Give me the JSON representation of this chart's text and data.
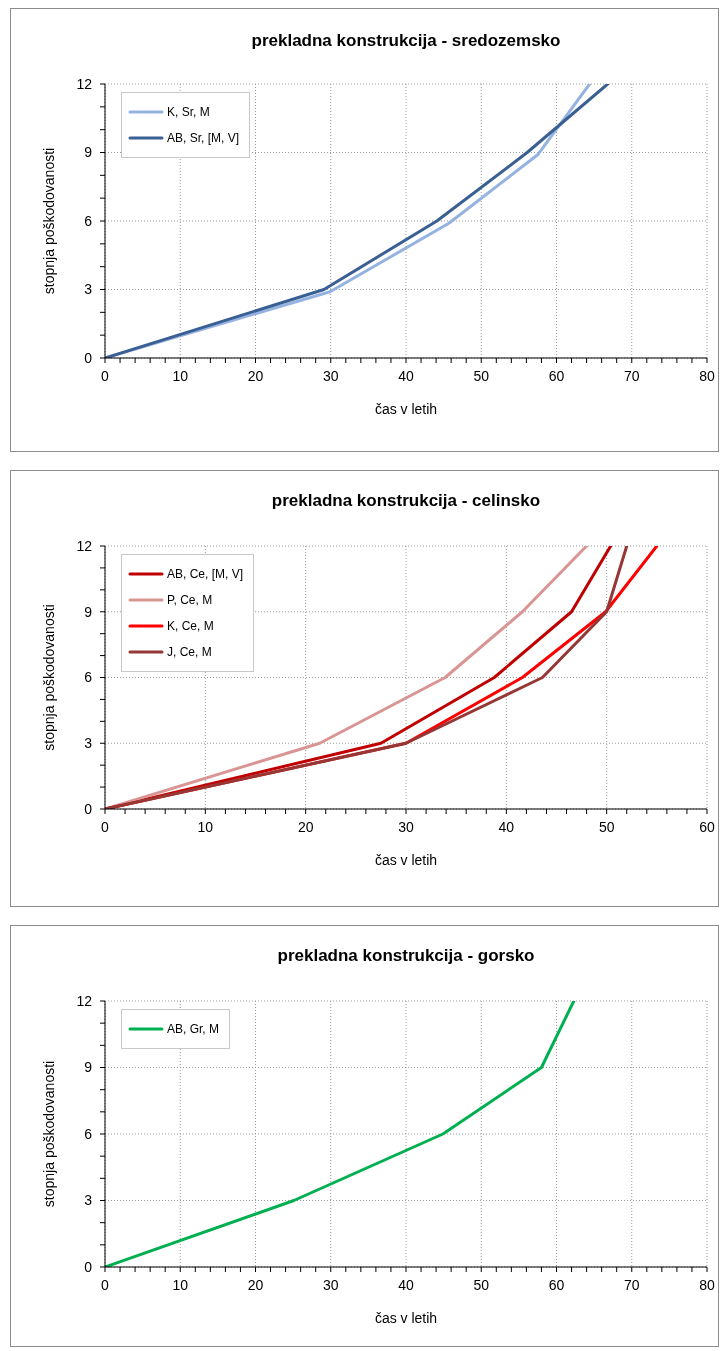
{
  "chart_data": [
    {
      "type": "line",
      "title": "prekladna konstrukcija - sredozemsko",
      "xlabel": "čas v letih",
      "ylabel": "stopnja poškodovanosti",
      "xlim": [
        0,
        80
      ],
      "ylim": [
        0,
        12
      ],
      "xticks": [
        0,
        {
          "value": 2,
          "label": null
        },
        {
          "value": 4,
          "label": null
        },
        {
          "value": 6,
          "label": null
        },
        {
          "value": 8,
          "label": null
        },
        10,
        {
          "value": 12,
          "label": null
        },
        {
          "value": 14,
          "label": null
        },
        {
          "value": 16,
          "label": null
        },
        {
          "value": 18,
          "label": null
        },
        20,
        {
          "value": 22,
          "label": null
        },
        {
          "value": 24,
          "label": null
        },
        {
          "value": 26,
          "label": null
        },
        {
          "value": 28,
          "label": null
        },
        30,
        {
          "value": 32,
          "label": null
        },
        {
          "value": 34,
          "label": null
        },
        {
          "value": 36,
          "label": null
        },
        {
          "value": 38,
          "label": null
        },
        40,
        {
          "value": 42,
          "label": null
        },
        {
          "value": 44,
          "label": null
        },
        {
          "value": 46,
          "label": null
        },
        {
          "value": 48,
          "label": null
        },
        50,
        {
          "value": 52,
          "label": null
        },
        {
          "value": 54,
          "label": null
        },
        {
          "value": 56,
          "label": null
        },
        {
          "value": 58,
          "label": null
        },
        60,
        {
          "value": 62,
          "label": null
        },
        {
          "value": 64,
          "label": null
        },
        {
          "value": 66,
          "label": null
        },
        {
          "value": 68,
          "label": null
        },
        70,
        {
          "value": 72,
          "label": null
        },
        {
          "value": 74,
          "label": null
        },
        {
          "value": 76,
          "label": null
        },
        {
          "value": 78,
          "label": null
        },
        80
      ],
      "yticks": [
        0,
        {
          "value": 1,
          "label": null
        },
        {
          "value": 2,
          "label": null
        },
        3,
        {
          "value": 4,
          "label": null
        },
        {
          "value": 5,
          "label": null
        },
        6,
        {
          "value": 7,
          "label": null
        },
        {
          "value": 8,
          "label": null
        },
        9,
        {
          "value": 10,
          "label": null
        },
        {
          "value": 11,
          "label": null
        },
        12
      ],
      "grid": true,
      "legend": "top left",
      "marker": "none",
      "line_style": "solid",
      "series": [
        {
          "name": "K, Sr, M",
          "color": "#95b3e0",
          "x": [
            0,
            29.9,
            45.7,
            57.5,
            64.4
          ],
          "values": [
            0,
            2.9,
            5.9,
            8.9,
            12
          ]
        },
        {
          "name": "AB, Sr, [M, V]",
          "color": "#3a5f93",
          "x": [
            0,
            29.1,
            44.1,
            56.1,
            66.8
          ],
          "values": [
            0,
            3,
            6,
            9,
            12
          ]
        }
      ]
    },
    {
      "type": "line",
      "title": "prekladna konstrukcija - celinsko",
      "xlabel": "čas v letih",
      "ylabel": "stopnja poškodovanosti",
      "xlim": [
        0,
        60
      ],
      "ylim": [
        0,
        12
      ],
      "xticks": [
        0,
        {
          "value": 2,
          "label": null
        },
        {
          "value": 4,
          "label": null
        },
        {
          "value": 6,
          "label": null
        },
        {
          "value": 8,
          "label": null
        },
        10,
        {
          "value": 12,
          "label": null
        },
        {
          "value": 14,
          "label": null
        },
        {
          "value": 16,
          "label": null
        },
        {
          "value": 18,
          "label": null
        },
        20,
        {
          "value": 22,
          "label": null
        },
        {
          "value": 24,
          "label": null
        },
        {
          "value": 26,
          "label": null
        },
        {
          "value": 28,
          "label": null
        },
        30,
        {
          "value": 32,
          "label": null
        },
        {
          "value": 34,
          "label": null
        },
        {
          "value": 36,
          "label": null
        },
        {
          "value": 38,
          "label": null
        },
        40,
        {
          "value": 42,
          "label": null
        },
        {
          "value": 44,
          "label": null
        },
        {
          "value": 46,
          "label": null
        },
        {
          "value": 48,
          "label": null
        },
        50,
        {
          "value": 52,
          "label": null
        },
        {
          "value": 54,
          "label": null
        },
        {
          "value": 56,
          "label": null
        },
        {
          "value": 58,
          "label": null
        },
        60
      ],
      "yticks": [
        0,
        {
          "value": 1,
          "label": null
        },
        {
          "value": 2,
          "label": null
        },
        3,
        {
          "value": 4,
          "label": null
        },
        {
          "value": 5,
          "label": null
        },
        6,
        {
          "value": 7,
          "label": null
        },
        {
          "value": 8,
          "label": null
        },
        9,
        {
          "value": 10,
          "label": null
        },
        {
          "value": 11,
          "label": null
        },
        12
      ],
      "grid": true,
      "legend": "top left",
      "marker": "none",
      "line_style": "solid",
      "series": [
        {
          "name": "AB, Ce, [M, V]",
          "color": "#c00000",
          "x": [
            0,
            27.5,
            38.8,
            46.5,
            50.4
          ],
          "values": [
            0,
            3,
            6,
            9,
            12
          ]
        },
        {
          "name": "P, Ce, M",
          "color": "#d99594",
          "x": [
            0,
            21.4,
            33.9,
            41.6,
            48
          ],
          "values": [
            0,
            3,
            6,
            9,
            12
          ]
        },
        {
          "name": "K, Ce, M",
          "color": "#ff0000",
          "x": [
            0,
            30,
            41.6,
            49.9,
            55
          ],
          "values": [
            0,
            3,
            6,
            9,
            12
          ]
        },
        {
          "name": "J, Ce, M",
          "color": "#953735",
          "x": [
            0,
            30,
            43.6,
            50,
            52
          ],
          "values": [
            0,
            3,
            6,
            9,
            12
          ]
        }
      ]
    },
    {
      "type": "line",
      "title": "prekladna konstrukcija - gorsko",
      "xlabel": "čas v letih",
      "ylabel": "stopnja poškodovanosti",
      "xlim": [
        0,
        80
      ],
      "ylim": [
        0,
        12
      ],
      "xticks": [
        0,
        {
          "value": 2,
          "label": null
        },
        {
          "value": 4,
          "label": null
        },
        {
          "value": 6,
          "label": null
        },
        {
          "value": 8,
          "label": null
        },
        10,
        {
          "value": 12,
          "label": null
        },
        {
          "value": 14,
          "label": null
        },
        {
          "value": 16,
          "label": null
        },
        {
          "value": 18,
          "label": null
        },
        20,
        {
          "value": 22,
          "label": null
        },
        {
          "value": 24,
          "label": null
        },
        {
          "value": 26,
          "label": null
        },
        {
          "value": 28,
          "label": null
        },
        30,
        {
          "value": 32,
          "label": null
        },
        {
          "value": 34,
          "label": null
        },
        {
          "value": 36,
          "label": null
        },
        {
          "value": 38,
          "label": null
        },
        40,
        {
          "value": 42,
          "label": null
        },
        {
          "value": 44,
          "label": null
        },
        {
          "value": 46,
          "label": null
        },
        {
          "value": 48,
          "label": null
        },
        50,
        {
          "value": 52,
          "label": null
        },
        {
          "value": 54,
          "label": null
        },
        {
          "value": 56,
          "label": null
        },
        {
          "value": 58,
          "label": null
        },
        60,
        {
          "value": 62,
          "label": null
        },
        {
          "value": 64,
          "label": null
        },
        {
          "value": 66,
          "label": null
        },
        {
          "value": 68,
          "label": null
        },
        70,
        {
          "value": 72,
          "label": null
        },
        {
          "value": 74,
          "label": null
        },
        {
          "value": 76,
          "label": null
        },
        {
          "value": 78,
          "label": null
        },
        80
      ],
      "yticks": [
        0,
        {
          "value": 1,
          "label": null
        },
        {
          "value": 2,
          "label": null
        },
        3,
        {
          "value": 4,
          "label": null
        },
        {
          "value": 5,
          "label": null
        },
        6,
        {
          "value": 7,
          "label": null
        },
        {
          "value": 8,
          "label": null
        },
        9,
        {
          "value": 10,
          "label": null
        },
        {
          "value": 11,
          "label": null
        },
        12
      ],
      "grid": true,
      "legend": "top left",
      "marker": "none",
      "line_style": "solid",
      "series": [
        {
          "name": "AB, Gr, M",
          "color": "#00b050",
          "x": [
            0,
            25.1,
            44.9,
            58,
            62.3
          ],
          "values": [
            0,
            3,
            6,
            9,
            12
          ]
        }
      ]
    }
  ]
}
